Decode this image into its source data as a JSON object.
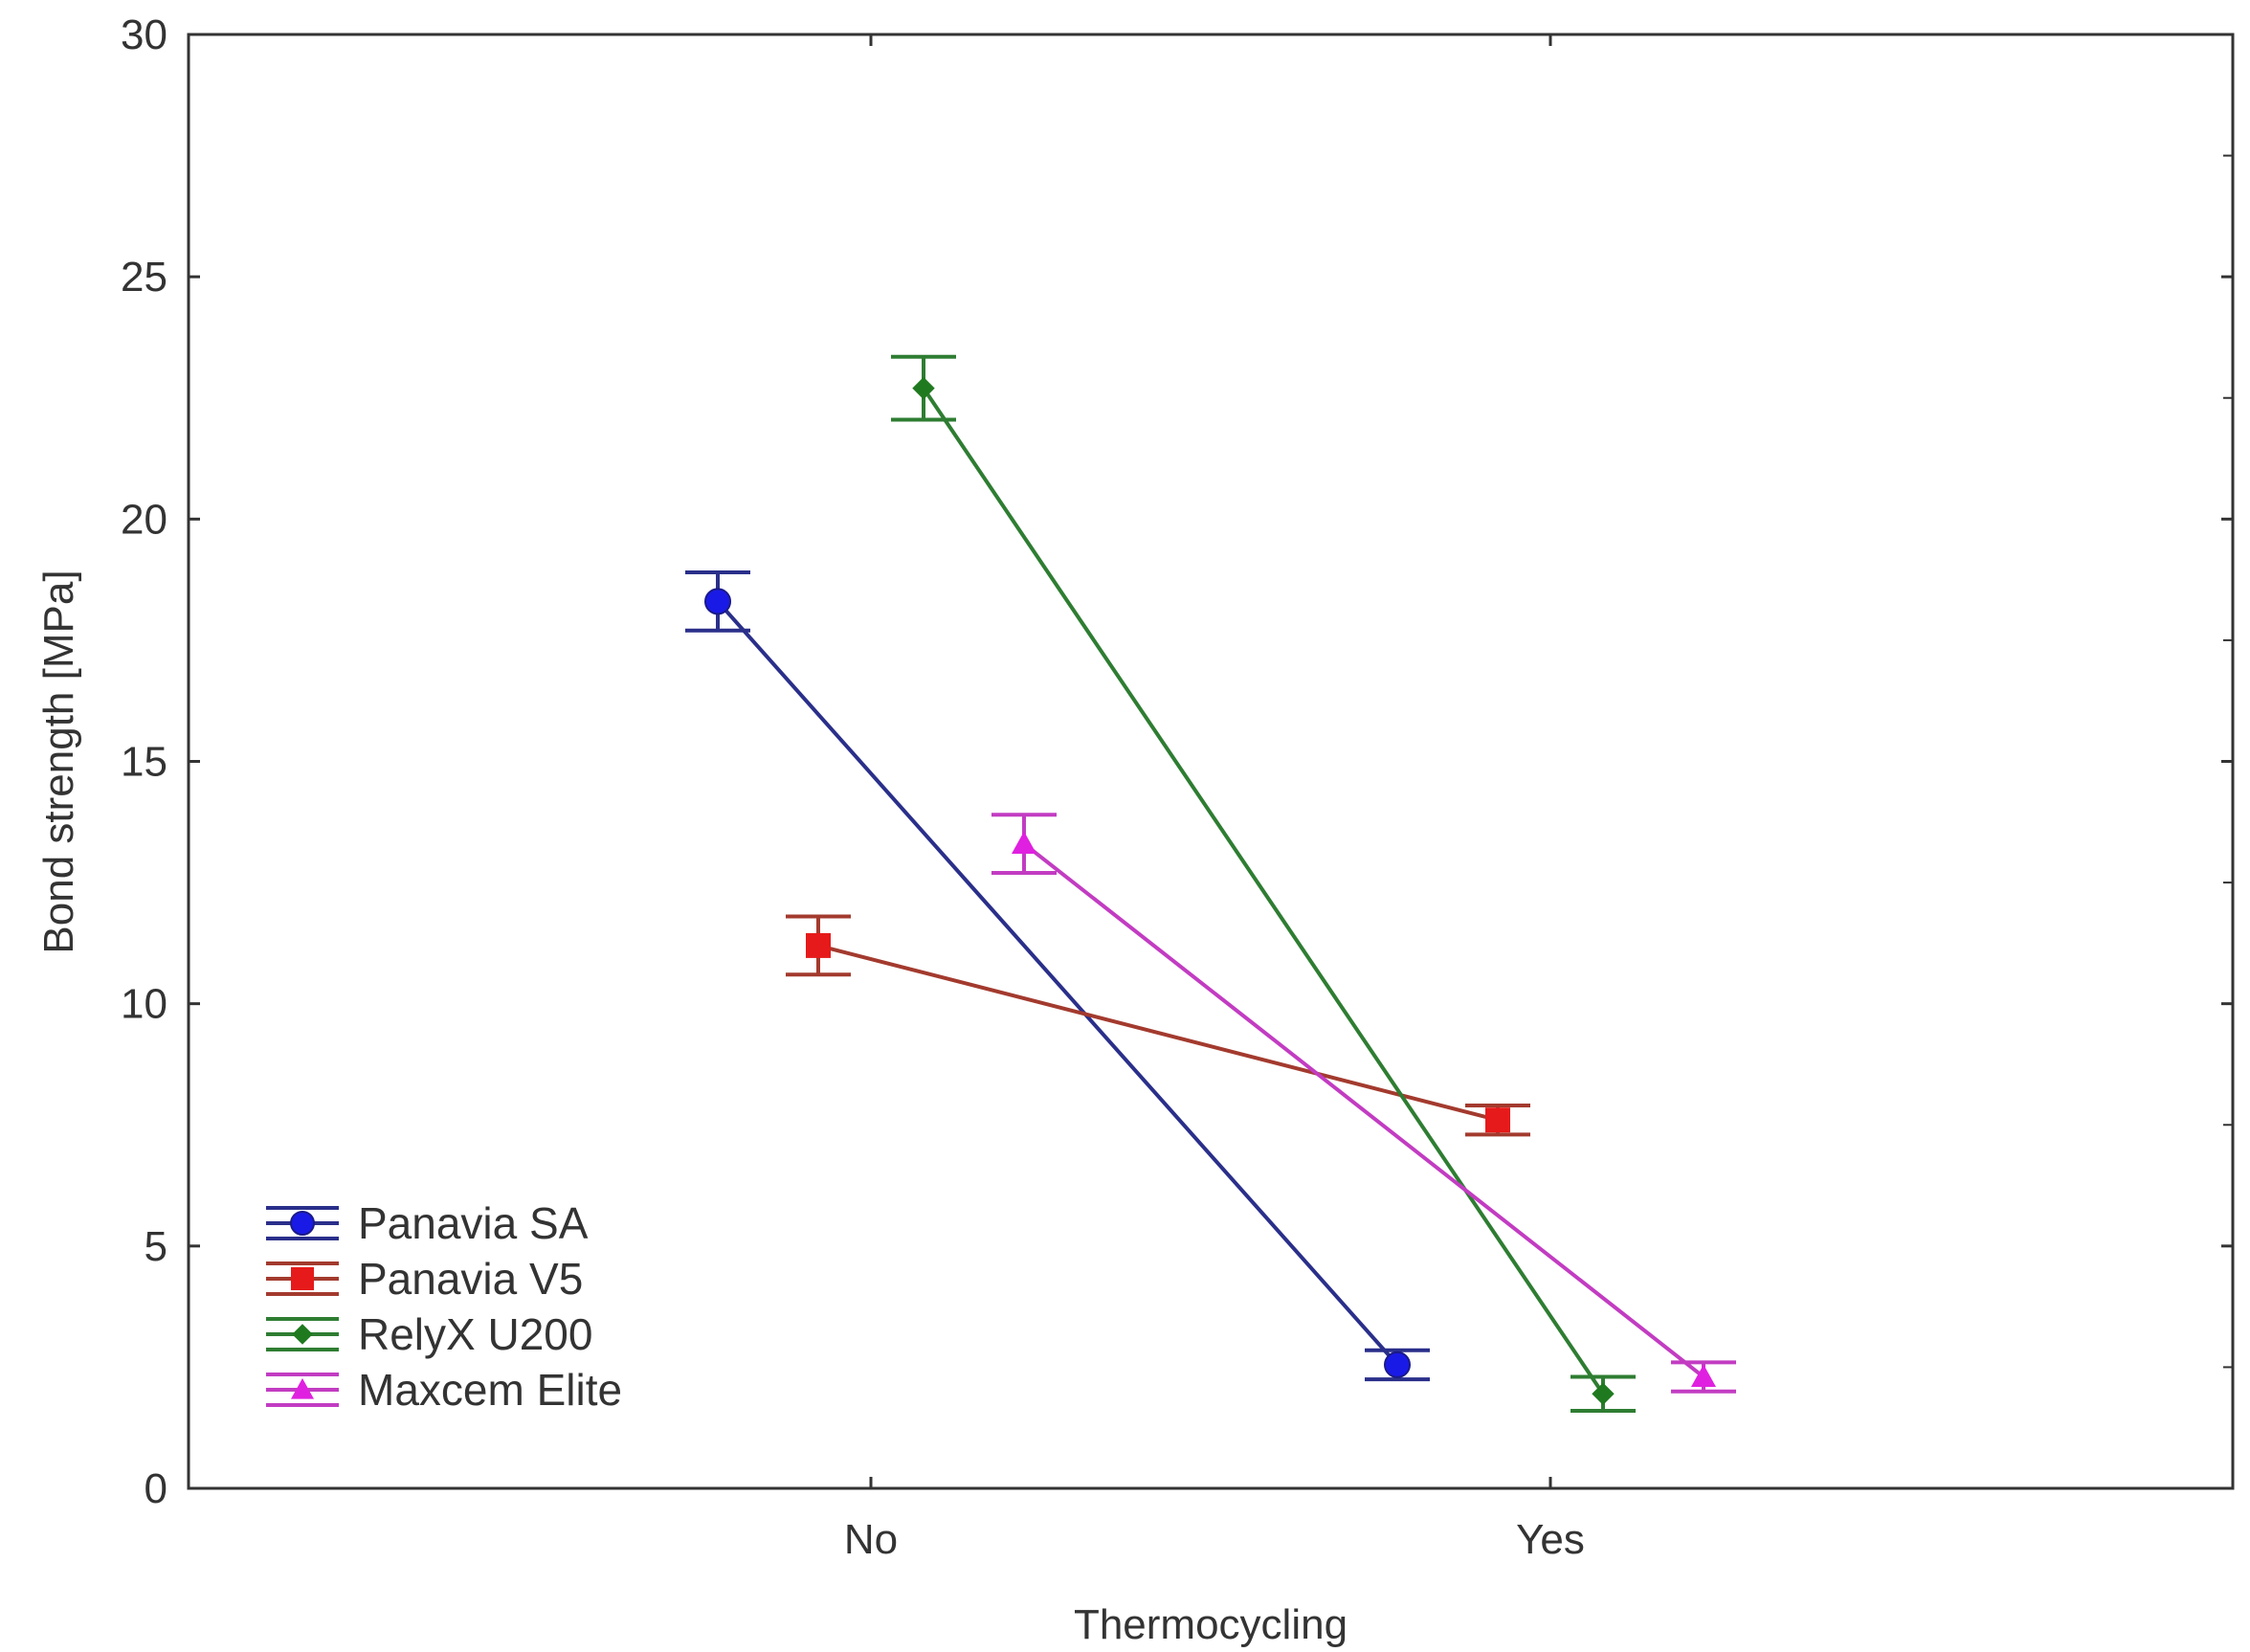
{
  "chart_data": {
    "type": "line",
    "title": "",
    "xlabel": "Thermocycling",
    "ylabel": "Bond strength [MPa]",
    "categories": [
      "No",
      "Yes"
    ],
    "ylim": [
      0,
      30
    ],
    "yticks": [
      "0",
      "5",
      "10",
      "15",
      "20",
      "25",
      "30"
    ],
    "grid": false,
    "legend_position": "bottom-left",
    "error_bars": true,
    "series": [
      {
        "name": "Panavia SA",
        "color": "#1a1ae6",
        "line_color": "#2a2f8a",
        "marker": "circle",
        "values": [
          18.3,
          2.55
        ],
        "errors": [
          0.6,
          0.3
        ]
      },
      {
        "name": "Panavia V5",
        "color": "#e61a1a",
        "line_color": "#a33a2e",
        "marker": "square",
        "values": [
          11.2,
          7.6
        ],
        "errors": [
          0.6,
          0.3
        ]
      },
      {
        "name": "RelyX U200",
        "color": "#1f7a1f",
        "line_color": "#2e7d32",
        "marker": "diamond",
        "values": [
          22.7,
          1.95
        ],
        "errors": [
          0.65,
          0.35
        ]
      },
      {
        "name": "Maxcem Elite",
        "color": "#e020e0",
        "line_color": "#c23cc2",
        "marker": "triangle",
        "values": [
          13.3,
          2.3
        ],
        "errors": [
          0.6,
          0.3
        ]
      }
    ]
  }
}
